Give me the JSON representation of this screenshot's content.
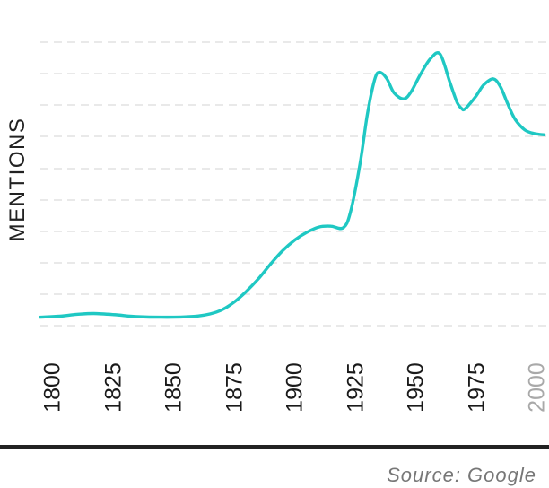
{
  "chart_data": {
    "type": "line",
    "title": "",
    "xlabel": "",
    "ylabel": "MENTIONS",
    "xlim": [
      1800,
      2008
    ],
    "x_ticks": [
      "1800",
      "1825",
      "1850",
      "1875",
      "1900",
      "1925",
      "1950",
      "1975",
      "2000"
    ],
    "muted_ticks": [
      "2000"
    ],
    "grid": true,
    "line_color": "#1fc8c3",
    "series": [
      {
        "x": [
          1800,
          1808,
          1815,
          1822,
          1830,
          1840,
          1850,
          1858,
          1865,
          1870,
          1875,
          1880,
          1885,
          1890,
          1895,
          1900,
          1905,
          1910,
          1915,
          1920,
          1925,
          1928,
          1932,
          1935,
          1938,
          1940,
          1943,
          1946,
          1950,
          1953,
          1957,
          1961,
          1965,
          1969,
          1972,
          1974,
          1975,
          1977,
          1980,
          1983,
          1987,
          1990,
          1993,
          1996,
          2000,
          2004,
          2008
        ],
        "y": [
          0.3,
          0.55,
          1.0,
          1.2,
          0.95,
          0.45,
          0.3,
          0.35,
          0.6,
          1.1,
          2.1,
          4.0,
          6.6,
          9.7,
          13.3,
          16.6,
          19.2,
          21.1,
          22.4,
          22.6,
          22.2,
          26.0,
          38.0,
          50.0,
          58.5,
          60.3,
          58.8,
          55.3,
          53.8,
          55.5,
          59.9,
          63.6,
          64.8,
          58.0,
          53.0,
          51.4,
          51.2,
          52.4,
          54.6,
          57.2,
          58.7,
          56.7,
          52.5,
          48.8,
          46.2,
          45.3,
          45.0
        ]
      }
    ]
  },
  "source_text": "Source: Google"
}
